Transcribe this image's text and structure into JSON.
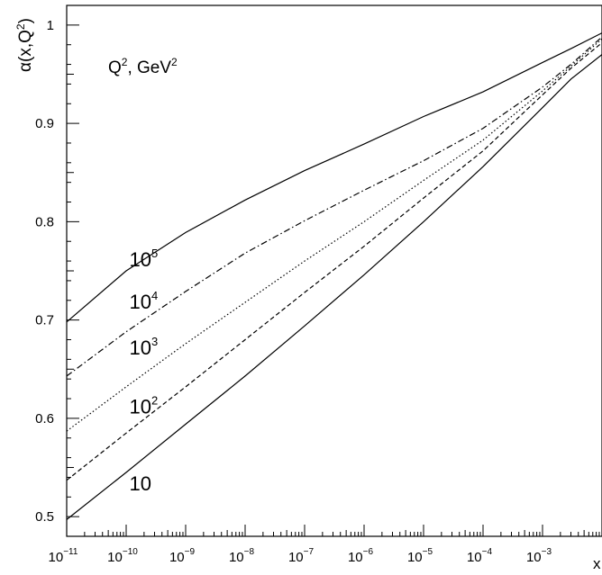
{
  "chart_data": {
    "type": "line",
    "title": "",
    "xlabel": "x",
    "ylabel": "α(x,Q²)",
    "ylabel_base": "α(x,Q",
    "ylabel_sup": "2",
    "ylabel_close": ")",
    "x_scale": "log",
    "xlim": [
      1e-11,
      0.01
    ],
    "ylim": [
      0.48,
      1.02
    ],
    "x_ticks": [
      {
        "value": 1e-11,
        "base": "10",
        "exp": "−11"
      },
      {
        "value": 1e-10,
        "base": "10",
        "exp": "−10"
      },
      {
        "value": 1e-09,
        "base": "10",
        "exp": "−9"
      },
      {
        "value": 1e-08,
        "base": "10",
        "exp": "−8"
      },
      {
        "value": 1e-07,
        "base": "10",
        "exp": "−7"
      },
      {
        "value": 1e-06,
        "base": "10",
        "exp": "−6"
      },
      {
        "value": 1e-05,
        "base": "10",
        "exp": "−5"
      },
      {
        "value": 0.0001,
        "base": "10",
        "exp": "−4"
      },
      {
        "value": 0.001,
        "base": "10",
        "exp": "−3"
      }
    ],
    "y_ticks": [
      {
        "value": 0.5,
        "label": "0.5"
      },
      {
        "value": 0.6,
        "label": "0.6"
      },
      {
        "value": 0.7,
        "label": "0.7"
      },
      {
        "value": 0.8,
        "label": "0.8"
      },
      {
        "value": 0.9,
        "label": "0.9"
      },
      {
        "value": 1.0,
        "label": "1"
      }
    ],
    "grid": false,
    "legend": {
      "title_base": "Q",
      "title_sup": "2",
      "title_mid": ", GeV",
      "title_sup2": "2",
      "placement": "top-left"
    },
    "series": [
      {
        "label_base": "10",
        "label_exp": "",
        "label_at": [
          3e-10,
          0.535
        ],
        "dash": "none",
        "x": [
          1e-11,
          1e-10,
          1e-09,
          1e-08,
          1e-07,
          1e-06,
          1e-05,
          0.0001,
          0.001,
          0.003,
          0.01
        ],
        "y": [
          0.497,
          0.545,
          0.594,
          0.643,
          0.694,
          0.746,
          0.8,
          0.856,
          0.916,
          0.945,
          0.97
        ]
      },
      {
        "label_base": "10",
        "label_exp": "2",
        "label_at": [
          3e-10,
          0.613
        ],
        "dash": "5,3",
        "x": [
          1e-11,
          1e-10,
          1e-09,
          1e-08,
          1e-07,
          1e-06,
          1e-05,
          0.0001,
          0.001,
          0.003,
          0.01
        ],
        "y": [
          0.537,
          0.585,
          0.632,
          0.68,
          0.728,
          0.775,
          0.824,
          0.872,
          0.929,
          0.956,
          0.982
        ]
      },
      {
        "label_base": "10",
        "label_exp": "3",
        "label_at": [
          3e-10,
          0.673
        ],
        "dash": "1.5,2.5",
        "x": [
          1e-11,
          1e-10,
          1e-09,
          1e-08,
          1e-07,
          1e-06,
          1e-05,
          0.0001,
          0.001,
          0.003,
          0.01
        ],
        "y": [
          0.587,
          0.632,
          0.676,
          0.718,
          0.76,
          0.8,
          0.842,
          0.883,
          0.933,
          0.958,
          0.986
        ]
      },
      {
        "label_base": "10",
        "label_exp": "4",
        "label_at": [
          3e-10,
          0.72
        ],
        "dash": "7,3,1.5,3",
        "x": [
          1e-11,
          1e-10,
          1e-09,
          1e-08,
          1e-07,
          1e-06,
          1e-05,
          0.0001,
          0.001,
          0.003,
          0.01
        ],
        "y": [
          0.643,
          0.688,
          0.729,
          0.768,
          0.801,
          0.832,
          0.862,
          0.895,
          0.937,
          0.96,
          0.988
        ]
      },
      {
        "label_base": "10",
        "label_exp": "5",
        "label_at": [
          3e-10,
          0.763
        ],
        "dash": "none",
        "x": [
          1e-11,
          1e-10,
          1e-09,
          1e-08,
          1e-07,
          1e-06,
          1e-05,
          0.0001,
          0.001,
          0.003,
          0.01
        ],
        "y": [
          0.698,
          0.75,
          0.789,
          0.822,
          0.852,
          0.879,
          0.907,
          0.932,
          0.962,
          0.976,
          0.992
        ]
      }
    ]
  }
}
